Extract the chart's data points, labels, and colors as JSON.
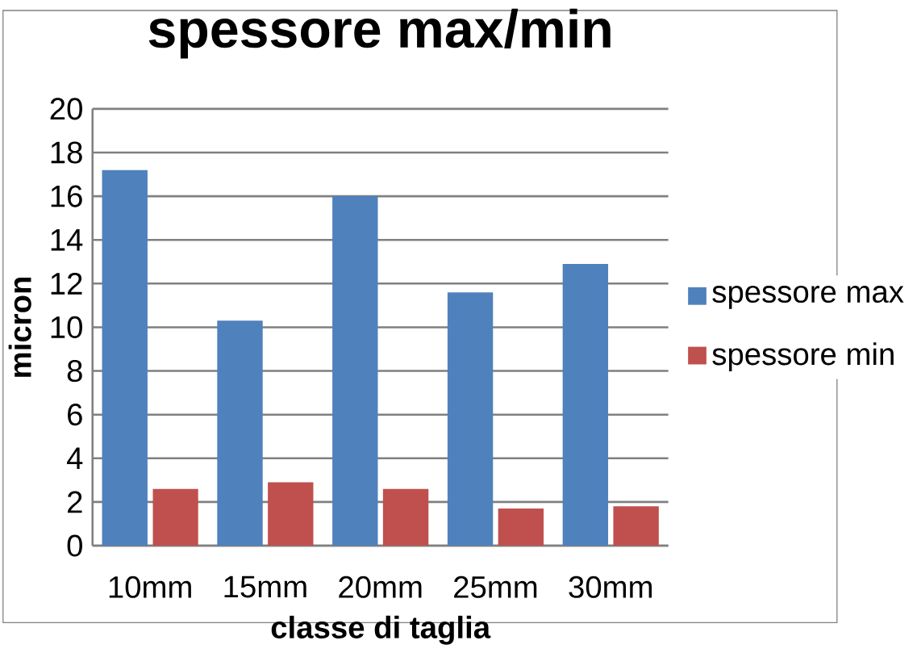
{
  "chart_data": {
    "type": "bar",
    "title": "spessore max/min",
    "xlabel": "classe di taglia",
    "ylabel": "micron",
    "categories": [
      "10mm",
      "15mm",
      "20mm",
      "25mm",
      "30mm"
    ],
    "series": [
      {
        "name": "spessore max",
        "color": "#4f81bd",
        "values": [
          17.2,
          10.3,
          16.0,
          11.6,
          12.9
        ]
      },
      {
        "name": "spessore min",
        "color": "#c0504d",
        "values": [
          2.6,
          2.9,
          2.6,
          1.7,
          1.8
        ]
      }
    ],
    "ylim": [
      0,
      20
    ],
    "yticks": [
      0,
      2,
      4,
      6,
      8,
      10,
      12,
      14,
      16,
      18,
      20
    ],
    "grid": "y",
    "legend": "right"
  }
}
